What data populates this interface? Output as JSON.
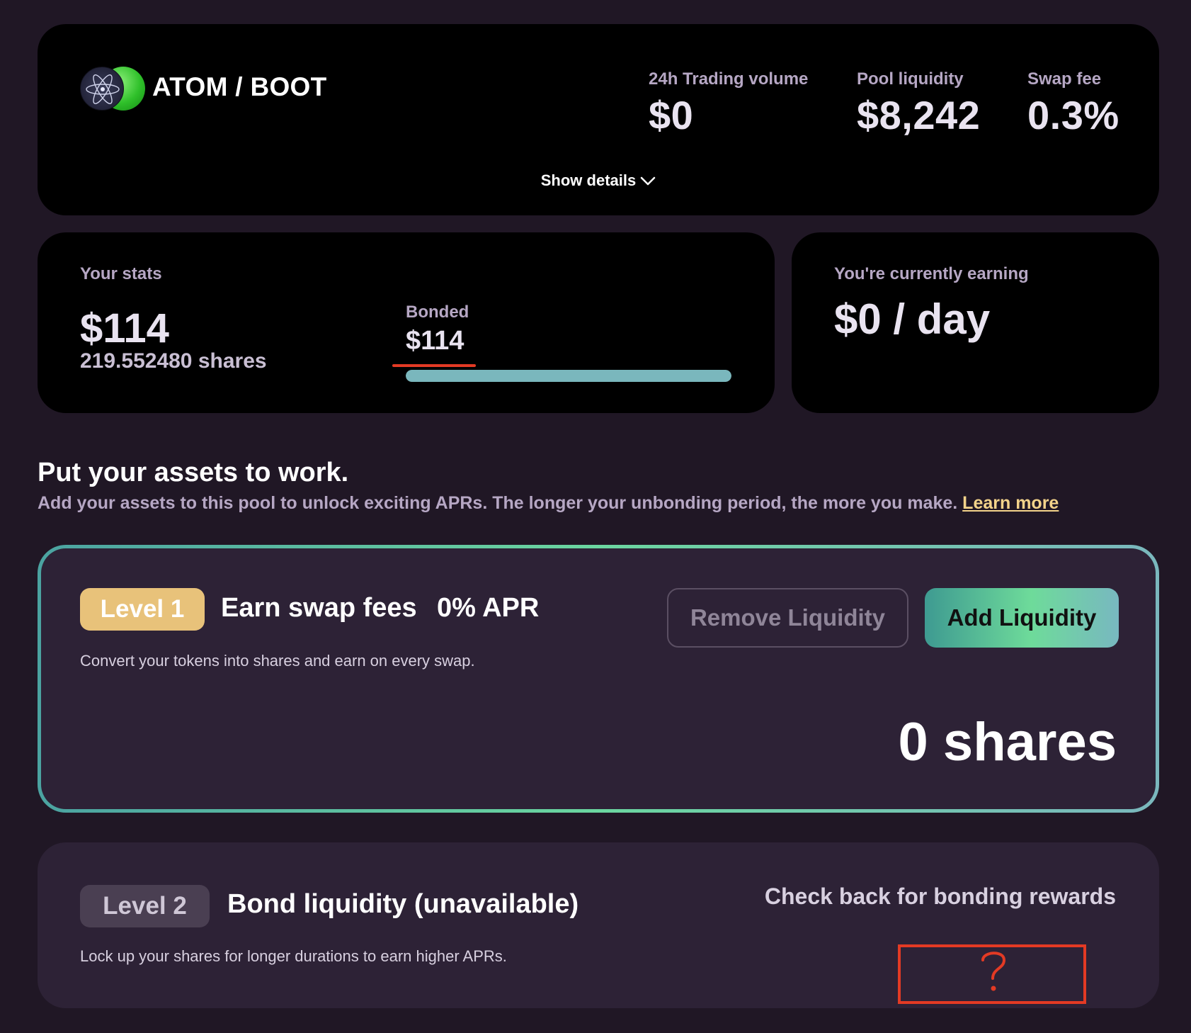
{
  "header": {
    "pool_name": "ATOM / BOOT",
    "logos": [
      "atom-icon",
      "boot-icon"
    ],
    "metrics": [
      {
        "label": "24h Trading volume",
        "value": "$0"
      },
      {
        "label": "Pool liquidity",
        "value": "$8,242"
      },
      {
        "label": "Swap fee",
        "value": "0.3%"
      }
    ],
    "show_details": "Show details"
  },
  "stats": {
    "title": "Your stats",
    "value": "$114",
    "shares": "219.552480 shares",
    "bonded_label": "Bonded",
    "bonded_value": "$114",
    "bonded_fraction": 1.0
  },
  "earning": {
    "title": "You're currently earning",
    "value": "$0 / day"
  },
  "assets": {
    "title": "Put your assets to work.",
    "description": "Add your assets to this pool to unlock exciting APRs. The longer your unbonding period, the more you make.",
    "learn_more": "Learn more"
  },
  "level1": {
    "badge": "Level 1",
    "title": "Earn swap fees",
    "apr": "0% APR",
    "description": "Convert your tokens into shares and earn on every swap.",
    "remove_label": "Remove Liquidity",
    "add_label": "Add Liquidity",
    "shares": "0 shares"
  },
  "level2": {
    "badge": "Level 2",
    "title": "Bond liquidity (unavailable)",
    "description": "Lock up your shares for longer durations to earn higher APRs.",
    "check_back": "Check back for bonding rewards"
  },
  "colors": {
    "background": "#201725",
    "card": "#000000",
    "level_card": "#2d2236",
    "gold": "#e8c27a",
    "accent_teal": "#7ab7bd",
    "accent_green": "#6edb9a",
    "link": "#f3d38a",
    "annotation_red": "#e33a24"
  }
}
